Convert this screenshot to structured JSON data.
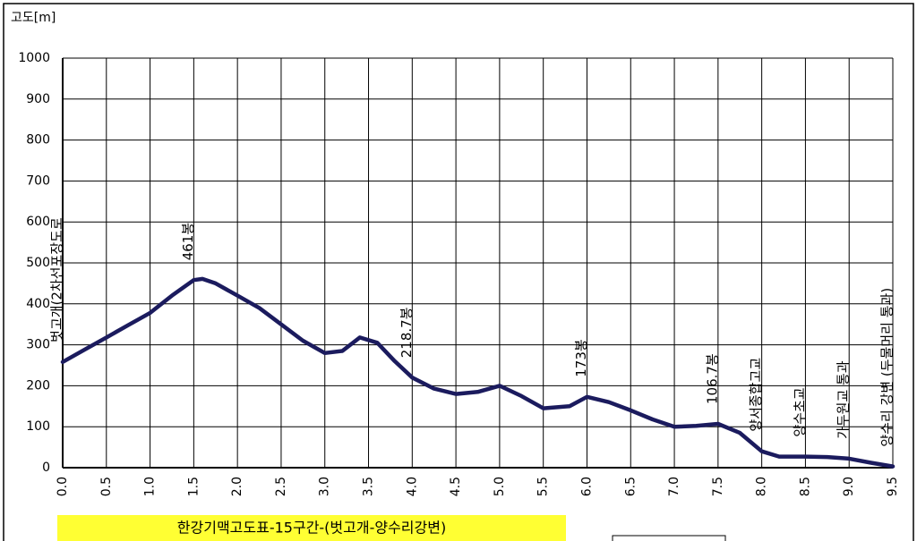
{
  "chart_data": {
    "type": "line",
    "title": "한강기맥고도표-15구간-(벗고개-양수리강변)",
    "ylabel": "고도[m]",
    "x": [
      0,
      0.25,
      0.5,
      0.75,
      1.0,
      1.25,
      1.5,
      1.6,
      1.75,
      2.0,
      2.25,
      2.5,
      2.75,
      3.0,
      3.2,
      3.4,
      3.6,
      3.8,
      4.0,
      4.25,
      4.5,
      4.75,
      5.0,
      5.25,
      5.5,
      5.8,
      6.0,
      6.25,
      6.5,
      6.75,
      7.0,
      7.25,
      7.5,
      7.75,
      8.0,
      8.2,
      8.5,
      8.75,
      9.0,
      9.25,
      9.5
    ],
    "series": [
      {
        "name": "고도",
        "color": "#1b1b5e",
        "values": [
          258,
          288,
          318,
          348,
          378,
          420,
          458,
          461,
          450,
          420,
          390,
          350,
          310,
          280,
          285,
          318,
          305,
          260,
          220,
          193,
          180,
          185,
          200,
          175,
          145,
          150,
          173,
          160,
          140,
          118,
          100,
          102,
          107,
          85,
          40,
          27,
          27,
          26,
          22,
          12,
          3
        ]
      }
    ],
    "annotations": [
      {
        "text": "벗고개(2차선포장도로",
        "x": 0
      },
      {
        "text": "461봉",
        "x": 1.5
      },
      {
        "text": "218.7봉",
        "x": 4.0
      },
      {
        "text": "173봉",
        "x": 6.0
      },
      {
        "text": "106.7봉",
        "x": 7.5
      },
      {
        "text": "양서종합고교",
        "x": 8.0
      },
      {
        "text": "양수초교",
        "x": 8.5
      },
      {
        "text": "가두원교 통과",
        "x": 9.0
      },
      {
        "text": "양수리 강변 (두물머리 통과)",
        "x": 9.5
      }
    ],
    "xlim": [
      0,
      9.5
    ],
    "xticks": [
      {
        "value": 0,
        "label": "0.0"
      },
      0.5,
      {
        "value": 1,
        "label": "1.0"
      },
      1.5,
      {
        "value": 2,
        "label": "2.0"
      },
      2.5,
      {
        "value": 3,
        "label": "3.0"
      },
      3.5,
      {
        "value": 4,
        "label": "4.0"
      },
      4.5,
      {
        "value": 5,
        "label": "5.0"
      },
      5.5,
      {
        "value": 6,
        "label": "6.0"
      },
      6.5,
      {
        "value": 7,
        "label": "7.0"
      },
      7.5,
      {
        "value": 8,
        "label": "8.0"
      },
      8.5,
      {
        "value": 9,
        "label": "9.0"
      },
      9.5
    ],
    "ylim": [
      0,
      1000
    ],
    "yticks": [
      0,
      100,
      200,
      300,
      400,
      500,
      600,
      700,
      800,
      900,
      1000
    ],
    "grid": true
  }
}
